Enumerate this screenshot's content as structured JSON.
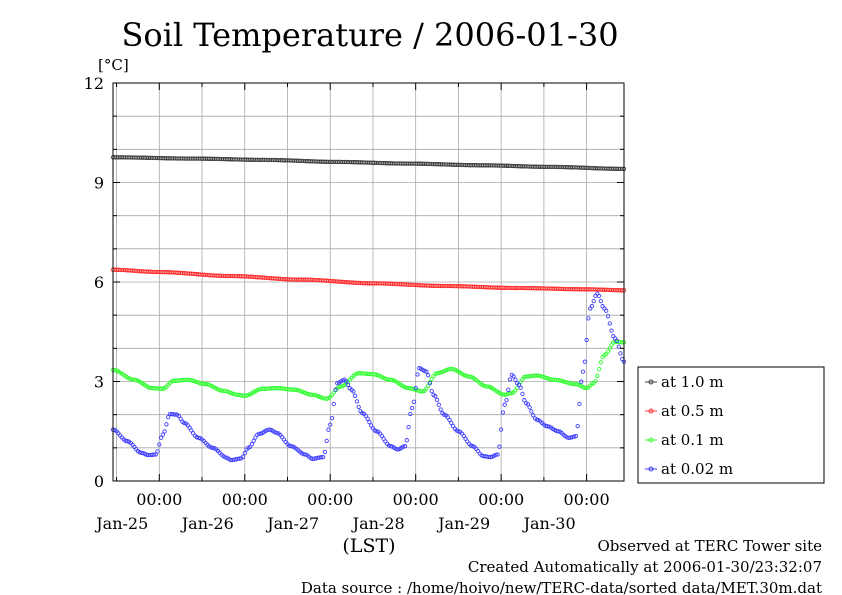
{
  "chart_data": {
    "type": "line",
    "title": "Soil Temperature / 2006-01-30",
    "ylabel": "[°C]",
    "xlabel": "(LST)",
    "ylim": [
      0,
      12
    ],
    "yticks": [
      "0",
      "3",
      "6",
      "9",
      "12"
    ],
    "xlim_hours": [
      -13,
      130.5
    ],
    "x_unit": "hours since 2006-01-25 00:00 LST",
    "xticks": [
      {
        "hour": 0,
        "time": "00:00",
        "date": "Jan-25"
      },
      {
        "hour": 24,
        "time": "00:00",
        "date": "Jan-26"
      },
      {
        "hour": 48,
        "time": "00:00",
        "date": "Jan-27"
      },
      {
        "hour": 72,
        "time": "00:00",
        "date": "Jan-28"
      },
      {
        "hour": 96,
        "time": "00:00",
        "date": "Jan-29"
      },
      {
        "hour": 120,
        "time": "00:00",
        "date": "Jan-30"
      }
    ],
    "grid": true,
    "legend_position": "right",
    "series": [
      {
        "name": "at 1.0 m",
        "color": "#404040",
        "points": [
          [
            -13,
            9.76
          ],
          [
            10,
            9.72
          ],
          [
            30,
            9.68
          ],
          [
            50,
            9.62
          ],
          [
            70,
            9.57
          ],
          [
            90,
            9.52
          ],
          [
            110,
            9.47
          ],
          [
            130.5,
            9.41
          ]
        ]
      },
      {
        "name": "at 0.5 m",
        "color": "#ff3030",
        "points": [
          [
            -13,
            6.37
          ],
          [
            0,
            6.3
          ],
          [
            20,
            6.18
          ],
          [
            40,
            6.07
          ],
          [
            60,
            5.96
          ],
          [
            80,
            5.88
          ],
          [
            100,
            5.82
          ],
          [
            120,
            5.78
          ],
          [
            130.5,
            5.75
          ]
        ]
      },
      {
        "name": "at 0.1 m",
        "color": "#30ff30",
        "points": [
          [
            -13,
            3.35
          ],
          [
            -7,
            3.05
          ],
          [
            -2,
            2.8
          ],
          [
            1,
            2.78
          ],
          [
            4,
            3.02
          ],
          [
            8,
            3.05
          ],
          [
            13,
            2.92
          ],
          [
            18,
            2.72
          ],
          [
            22,
            2.6
          ],
          [
            24,
            2.57
          ],
          [
            29,
            2.78
          ],
          [
            33,
            2.8
          ],
          [
            38,
            2.75
          ],
          [
            43,
            2.6
          ],
          [
            47,
            2.48
          ],
          [
            51,
            2.85
          ],
          [
            56,
            3.25
          ],
          [
            60,
            3.22
          ],
          [
            65,
            3.05
          ],
          [
            70,
            2.8
          ],
          [
            74,
            2.7
          ],
          [
            78,
            3.25
          ],
          [
            82,
            3.38
          ],
          [
            87,
            3.15
          ],
          [
            92,
            2.85
          ],
          [
            97,
            2.6
          ],
          [
            99,
            2.65
          ],
          [
            103,
            3.15
          ],
          [
            106,
            3.18
          ],
          [
            111,
            3.05
          ],
          [
            117,
            2.92
          ],
          [
            120,
            2.8
          ],
          [
            122,
            2.95
          ],
          [
            125,
            3.8
          ],
          [
            128,
            4.2
          ],
          [
            130.5,
            4.18
          ]
        ]
      },
      {
        "name": "at 0.02 m",
        "color": "#4040ff",
        "points": [
          [
            -13,
            1.55
          ],
          [
            -9,
            1.2
          ],
          [
            -5,
            0.85
          ],
          [
            -3,
            0.78
          ],
          [
            -1,
            0.8
          ],
          [
            1,
            1.4
          ],
          [
            3,
            2.02
          ],
          [
            5,
            2.0
          ],
          [
            7,
            1.75
          ],
          [
            11,
            1.3
          ],
          [
            15,
            1.0
          ],
          [
            19,
            0.7
          ],
          [
            20,
            0.63
          ],
          [
            23,
            0.68
          ],
          [
            25,
            1.0
          ],
          [
            28,
            1.42
          ],
          [
            31,
            1.55
          ],
          [
            33,
            1.45
          ],
          [
            37,
            1.05
          ],
          [
            41,
            0.8
          ],
          [
            43,
            0.67
          ],
          [
            46,
            0.72
          ],
          [
            48,
            1.7
          ],
          [
            50,
            2.95
          ],
          [
            52,
            3.05
          ],
          [
            54,
            2.75
          ],
          [
            57,
            2.05
          ],
          [
            61,
            1.5
          ],
          [
            65,
            1.05
          ],
          [
            67,
            0.95
          ],
          [
            69,
            1.05
          ],
          [
            71,
            2.2
          ],
          [
            73,
            3.4
          ],
          [
            75,
            3.3
          ],
          [
            77,
            2.6
          ],
          [
            80,
            2.0
          ],
          [
            84,
            1.5
          ],
          [
            88,
            1.05
          ],
          [
            91,
            0.75
          ],
          [
            93,
            0.72
          ],
          [
            95,
            0.8
          ],
          [
            97,
            2.3
          ],
          [
            99,
            3.2
          ],
          [
            101,
            2.9
          ],
          [
            103,
            2.35
          ],
          [
            106,
            1.85
          ],
          [
            109,
            1.65
          ],
          [
            112,
            1.5
          ],
          [
            115,
            1.3
          ],
          [
            117,
            1.35
          ],
          [
            119,
            3.3
          ],
          [
            121,
            5.2
          ],
          [
            123,
            5.65
          ],
          [
            125,
            5.2
          ],
          [
            128,
            4.3
          ],
          [
            130.5,
            3.6
          ]
        ]
      }
    ]
  },
  "footer": {
    "line1": "Observed at TERC Tower site",
    "line2": "Created Automatically at 2006-01-30/23:32:07",
    "line3": "Data source : /home/hoivo/new/TERC-data/sorted data/MET.30m.dat"
  }
}
